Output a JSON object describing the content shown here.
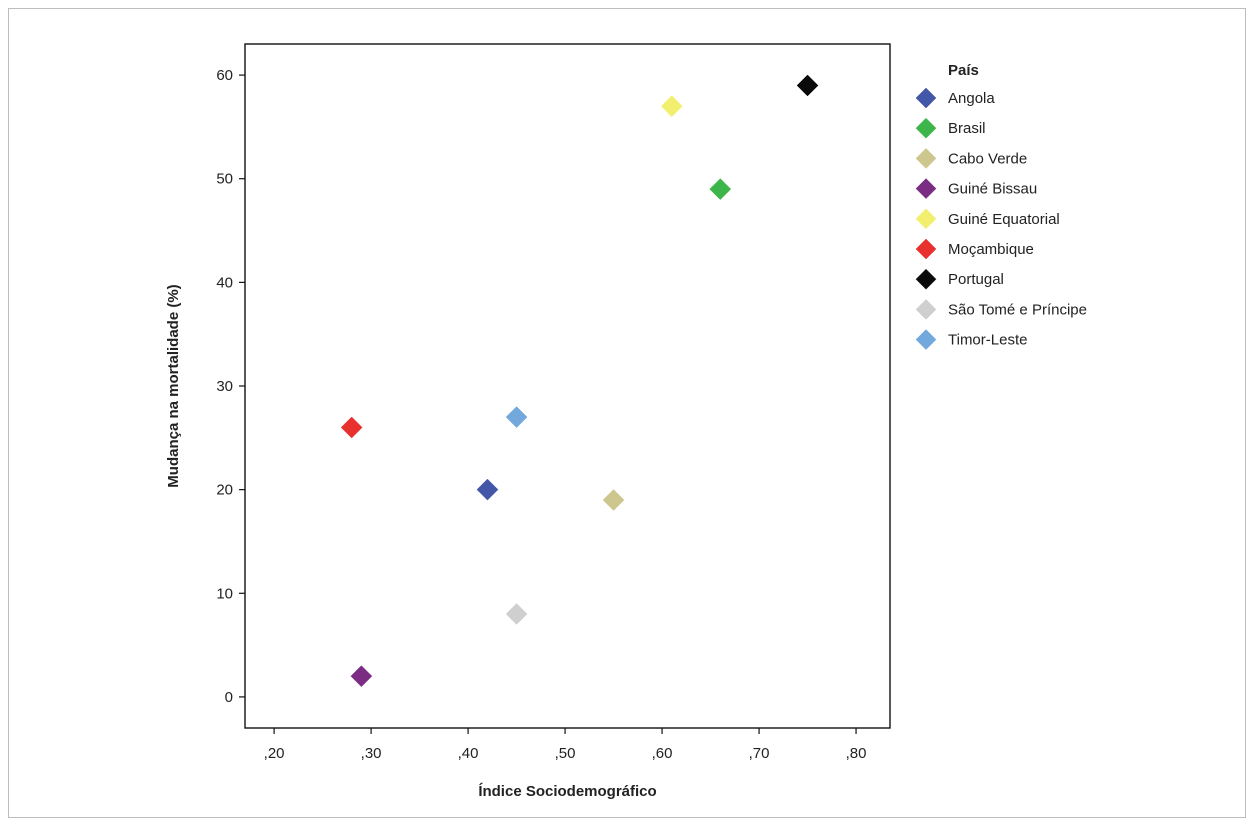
{
  "chart_data": {
    "type": "scatter",
    "xlabel": "Índice Sociodemográfico",
    "ylabel": "Mudança na mortalidade (%)",
    "xlim": [
      0.17,
      0.835
    ],
    "ylim": [
      -3,
      63
    ],
    "x_ticks": [
      0.2,
      0.3,
      0.4,
      0.5,
      0.6,
      0.7,
      0.8
    ],
    "x_tick_labels": [
      ",20",
      ",30",
      ",40",
      ",50",
      ",60",
      ",70",
      ",80"
    ],
    "y_ticks": [
      0,
      10,
      20,
      30,
      40,
      50,
      60
    ],
    "y_tick_labels": [
      "0",
      "10",
      "20",
      "30",
      "40",
      "50",
      "60"
    ],
    "grid": false,
    "legend_title": "País",
    "legend_position": "right",
    "marker": "diamond",
    "series": [
      {
        "name": "Angola",
        "color": "#4257a8",
        "x": [
          0.42
        ],
        "y": [
          20
        ]
      },
      {
        "name": "Brasil",
        "color": "#3cb54a",
        "x": [
          0.66
        ],
        "y": [
          49
        ]
      },
      {
        "name": "Cabo Verde",
        "color": "#cdc68f",
        "x": [
          0.55
        ],
        "y": [
          19
        ]
      },
      {
        "name": "Guiné Bissau",
        "color": "#7b2d84",
        "x": [
          0.29
        ],
        "y": [
          2
        ]
      },
      {
        "name": "Guiné Equatorial",
        "color": "#f2ef6e",
        "x": [
          0.61
        ],
        "y": [
          57
        ]
      },
      {
        "name": "Moçambique",
        "color": "#e8302e",
        "x": [
          0.28
        ],
        "y": [
          26
        ]
      },
      {
        "name": "Portugal",
        "color": "#0a0a0a",
        "x": [
          0.75
        ],
        "y": [
          59
        ]
      },
      {
        "name": "São Tomé e Príncipe",
        "color": "#cfcfcf",
        "x": [
          0.45
        ],
        "y": [
          8
        ]
      },
      {
        "name": "Timor-Leste",
        "color": "#72a8dc",
        "x": [
          0.45
        ],
        "y": [
          27
        ]
      }
    ]
  }
}
